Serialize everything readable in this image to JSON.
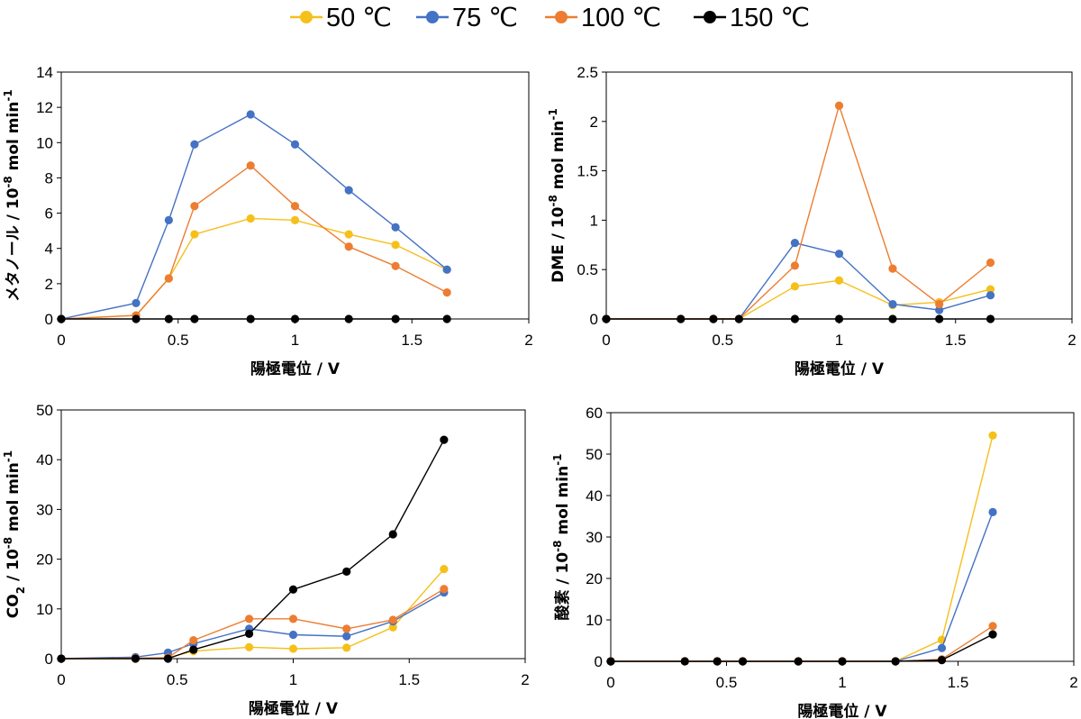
{
  "legend": [
    {
      "label": "50 ℃",
      "color": "#F5C01A"
    },
    {
      "label": "75 ℃",
      "color": "#4472C4"
    },
    {
      "label": "100 ℃",
      "color": "#ED7D31"
    },
    {
      "label": "150 ℃",
      "color": "#000000"
    }
  ],
  "chart_data": [
    {
      "type": "line",
      "ylabel": "メタノール / 10-8 mol min-1",
      "ylabel_parts": {
        "main": "メタノール / 10",
        "exp": "-8",
        "mid": " mol min",
        "exp2": "-1"
      },
      "xlabel": "陽極電位 / V",
      "xlim": [
        0,
        2
      ],
      "ylim": [
        0,
        14
      ],
      "xticks": [
        0,
        0.5,
        1,
        1.5,
        2
      ],
      "xtick_labels": [
        "0",
        "0.5",
        "1",
        "1.5",
        "2"
      ],
      "yticks": [
        0,
        2,
        4,
        6,
        8,
        10,
        12,
        14
      ],
      "ytick_labels": [
        "0",
        "2",
        "4",
        "6",
        "8",
        "10",
        "12",
        "14"
      ],
      "series": [
        {
          "name": "50 ℃",
          "x": [
            0,
            0.32,
            0.46,
            0.57,
            0.81,
            1.0,
            1.23,
            1.43,
            1.65
          ],
          "y": [
            0,
            0.2,
            2.3,
            4.8,
            5.7,
            5.6,
            4.8,
            4.2,
            2.8
          ]
        },
        {
          "name": "75 ℃",
          "x": [
            0,
            0.32,
            0.46,
            0.57,
            0.81,
            1.0,
            1.23,
            1.43,
            1.65
          ],
          "y": [
            0,
            0.9,
            5.6,
            9.9,
            11.6,
            9.9,
            7.3,
            5.2,
            2.8
          ]
        },
        {
          "name": "100 ℃",
          "x": [
            0,
            0.32,
            0.46,
            0.57,
            0.81,
            1.0,
            1.23,
            1.43,
            1.65
          ],
          "y": [
            0,
            0.2,
            2.3,
            6.4,
            8.7,
            6.4,
            4.1,
            3.0,
            1.5
          ]
        },
        {
          "name": "150 ℃",
          "x": [
            0,
            0.32,
            0.46,
            0.57,
            0.81,
            1.0,
            1.23,
            1.43,
            1.65
          ],
          "y": [
            0,
            0,
            0,
            0,
            0,
            0,
            0,
            0,
            0
          ]
        }
      ]
    },
    {
      "type": "line",
      "ylabel": "DME / 10-8 mol min-1",
      "ylabel_parts": {
        "main": "DME / 10",
        "exp": "-8",
        "mid": " mol min",
        "exp2": "-1"
      },
      "xlabel": "陽極電位 / V",
      "xlim": [
        0,
        2
      ],
      "ylim": [
        0,
        2.5
      ],
      "xticks": [
        0,
        0.5,
        1,
        1.5,
        2
      ],
      "xtick_labels": [
        "0",
        "0.5",
        "1",
        "1.5",
        "2"
      ],
      "yticks": [
        0,
        0.5,
        1,
        1.5,
        2,
        2.5
      ],
      "ytick_labels": [
        "0",
        "0.5",
        "1",
        "1.5",
        "2",
        "2.5"
      ],
      "series": [
        {
          "name": "50 ℃",
          "x": [
            0,
            0.32,
            0.46,
            0.57,
            0.81,
            1.0,
            1.23,
            1.43,
            1.65
          ],
          "y": [
            0,
            0,
            0,
            0,
            0.33,
            0.39,
            0.14,
            0.17,
            0.3
          ]
        },
        {
          "name": "75 ℃",
          "x": [
            0,
            0.32,
            0.46,
            0.57,
            0.81,
            1.0,
            1.23,
            1.43,
            1.65
          ],
          "y": [
            0,
            0,
            0,
            0,
            0.77,
            0.66,
            0.15,
            0.09,
            0.24
          ]
        },
        {
          "name": "100 ℃",
          "x": [
            0,
            0.32,
            0.46,
            0.57,
            0.81,
            1.0,
            1.23,
            1.43,
            1.65
          ],
          "y": [
            0,
            0,
            0,
            0,
            0.54,
            2.16,
            0.51,
            0.15,
            0.57
          ]
        },
        {
          "name": "150 ℃",
          "x": [
            0,
            0.32,
            0.46,
            0.57,
            0.81,
            1.0,
            1.23,
            1.43,
            1.65
          ],
          "y": [
            0,
            0,
            0,
            0,
            0,
            0,
            0,
            0,
            0
          ]
        }
      ]
    },
    {
      "type": "line",
      "ylabel": "CO2 / 10-8 mol min-1",
      "ylabel_parts": {
        "main": "CO",
        "sub": "2",
        "mid0": " / 10",
        "exp": "-8",
        "mid": " mol min",
        "exp2": "-1"
      },
      "xlabel": "陽極電位 / V",
      "xlim": [
        0,
        2
      ],
      "ylim": [
        0,
        50
      ],
      "xticks": [
        0,
        0.5,
        1,
        1.5,
        2
      ],
      "xtick_labels": [
        "0",
        "0.5",
        "1",
        "1.5",
        "2"
      ],
      "yticks": [
        0,
        10,
        20,
        30,
        40,
        50
      ],
      "ytick_labels": [
        "0",
        "10",
        "20",
        "30",
        "40",
        "50"
      ],
      "series": [
        {
          "name": "50 ℃",
          "x": [
            0,
            0.32,
            0.46,
            0.57,
            0.81,
            1.0,
            1.23,
            1.43,
            1.65
          ],
          "y": [
            0,
            0,
            0.2,
            1.5,
            2.3,
            2.0,
            2.2,
            6.3,
            18.0
          ]
        },
        {
          "name": "75 ℃",
          "x": [
            0,
            0.32,
            0.46,
            0.57,
            0.81,
            1.0,
            1.23,
            1.43,
            1.65
          ],
          "y": [
            0,
            0.3,
            1.2,
            3.0,
            6.0,
            4.8,
            4.5,
            7.5,
            13.3
          ]
        },
        {
          "name": "100 ℃",
          "x": [
            0,
            0.32,
            0.46,
            0.57,
            0.81,
            1.0,
            1.23,
            1.43,
            1.65
          ],
          "y": [
            0,
            0.1,
            0.2,
            3.7,
            8.0,
            8.0,
            6.0,
            7.8,
            14.0
          ]
        },
        {
          "name": "150 ℃",
          "x": [
            0,
            0.32,
            0.46,
            0.57,
            0.81,
            1.0,
            1.23,
            1.43,
            1.65
          ],
          "y": [
            0,
            0,
            0,
            1.8,
            5.0,
            13.9,
            17.5,
            25.0,
            44.0
          ]
        }
      ]
    },
    {
      "type": "line",
      "ylabel": "酸素 / 10-8 mol min-1",
      "ylabel_parts": {
        "main": "酸素 / 10",
        "exp": "-8",
        "mid": " mol min",
        "exp2": "-1"
      },
      "xlabel": "陽極電位 / V",
      "xlim": [
        0,
        2
      ],
      "ylim": [
        0,
        60
      ],
      "xticks": [
        0,
        0.5,
        1,
        1.5,
        2
      ],
      "xtick_labels": [
        "0",
        "0.5",
        "1",
        "1.5",
        "2"
      ],
      "yticks": [
        0,
        10,
        20,
        30,
        40,
        50,
        60
      ],
      "ytick_labels": [
        "0",
        "10",
        "20",
        "30",
        "40",
        "50",
        "60"
      ],
      "series": [
        {
          "name": "50 ℃",
          "x": [
            0,
            0.32,
            0.46,
            0.57,
            0.81,
            1.0,
            1.23,
            1.43,
            1.65
          ],
          "y": [
            0,
            0,
            0,
            0,
            0,
            0,
            0,
            5.2,
            54.5
          ]
        },
        {
          "name": "75 ℃",
          "x": [
            0,
            0.32,
            0.46,
            0.57,
            0.81,
            1.0,
            1.23,
            1.43,
            1.65
          ],
          "y": [
            0,
            0,
            0,
            0,
            0,
            0,
            0,
            3.2,
            36.0
          ]
        },
        {
          "name": "100 ℃",
          "x": [
            0,
            0.32,
            0.46,
            0.57,
            0.81,
            1.0,
            1.23,
            1.43,
            1.65
          ],
          "y": [
            0,
            0,
            0,
            0,
            0,
            0,
            0,
            0.5,
            8.5
          ]
        },
        {
          "name": "150 ℃",
          "x": [
            0,
            0.32,
            0.46,
            0.57,
            0.81,
            1.0,
            1.23,
            1.43,
            1.65
          ],
          "y": [
            0,
            0,
            0,
            0,
            0,
            0,
            0,
            0.3,
            6.5
          ]
        }
      ]
    }
  ]
}
